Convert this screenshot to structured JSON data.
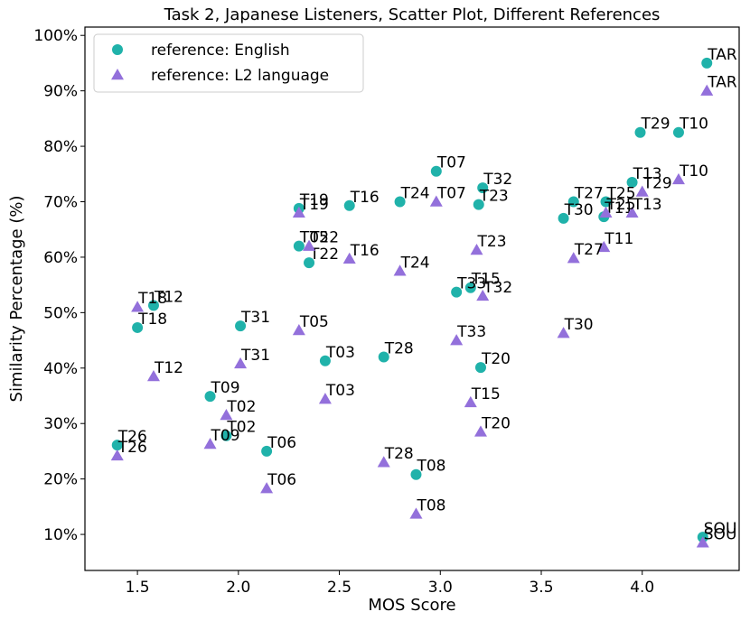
{
  "chart_data": {
    "type": "scatter",
    "title": "Task 2, Japanese Listeners, Scatter Plot, Different References",
    "xlabel": "MOS Score",
    "ylabel": "Similarity Percentage (%)",
    "xlim": [
      1.24,
      4.48
    ],
    "ylim": [
      3.5,
      101.5
    ],
    "xticks": [
      1.5,
      2.0,
      2.5,
      3.0,
      3.5,
      4.0
    ],
    "xtick_labels": [
      "1.5",
      "2.0",
      "2.5",
      "3.0",
      "3.5",
      "4.0"
    ],
    "yticks": [
      10,
      20,
      30,
      40,
      50,
      60,
      70,
      80,
      90,
      100
    ],
    "ytick_labels": [
      "10%",
      "20%",
      "30%",
      "40%",
      "50%",
      "60%",
      "70%",
      "80%",
      "90%",
      "100%"
    ],
    "grid": false,
    "legend_position": "top-left",
    "series": [
      {
        "name": "reference: English",
        "marker": "circle",
        "color": "#20b2aa",
        "points": [
          {
            "label": "TAR",
            "x": 4.32,
            "y": 95.0
          },
          {
            "label": "T29",
            "x": 3.99,
            "y": 82.5
          },
          {
            "label": "T10",
            "x": 4.18,
            "y": 82.5
          },
          {
            "label": "T07",
            "x": 2.98,
            "y": 75.5
          },
          {
            "label": "T13",
            "x": 3.95,
            "y": 73.5
          },
          {
            "label": "T32",
            "x": 3.21,
            "y": 72.5
          },
          {
            "label": "T27",
            "x": 3.66,
            "y": 70.0
          },
          {
            "label": "T25",
            "x": 3.82,
            "y": 70.0
          },
          {
            "label": "T24",
            "x": 2.8,
            "y": 70.0
          },
          {
            "label": "T16",
            "x": 2.55,
            "y": 69.3
          },
          {
            "label": "T23",
            "x": 3.19,
            "y": 69.5
          },
          {
            "label": "T19",
            "x": 2.3,
            "y": 68.8
          },
          {
            "label": "T11",
            "x": 3.81,
            "y": 67.3
          },
          {
            "label": "T30",
            "x": 3.61,
            "y": 67.0
          },
          {
            "label": "T05",
            "x": 2.3,
            "y": 62.0
          },
          {
            "label": "T22",
            "x": 2.35,
            "y": 59.0
          },
          {
            "label": "T15",
            "x": 3.15,
            "y": 54.5
          },
          {
            "label": "T33",
            "x": 3.08,
            "y": 53.7
          },
          {
            "label": "T12",
            "x": 1.58,
            "y": 51.3
          },
          {
            "label": "T31",
            "x": 2.01,
            "y": 47.6
          },
          {
            "label": "T18",
            "x": 1.5,
            "y": 47.3
          },
          {
            "label": "T28",
            "x": 2.72,
            "y": 42.0
          },
          {
            "label": "T03",
            "x": 2.43,
            "y": 41.3
          },
          {
            "label": "T20",
            "x": 3.2,
            "y": 40.1
          },
          {
            "label": "T09",
            "x": 1.86,
            "y": 34.9
          },
          {
            "label": "T02",
            "x": 1.94,
            "y": 27.8
          },
          {
            "label": "T26",
            "x": 1.4,
            "y": 26.1
          },
          {
            "label": "T06",
            "x": 2.14,
            "y": 25.0
          },
          {
            "label": "T08",
            "x": 2.88,
            "y": 20.8
          },
          {
            "label": "SOU",
            "x": 4.3,
            "y": 9.5
          }
        ]
      },
      {
        "name": "reference: L2 language",
        "marker": "triangle",
        "color": "#9370db",
        "points": [
          {
            "label": "TAR",
            "x": 4.32,
            "y": 90.0
          },
          {
            "label": "T10",
            "x": 4.18,
            "y": 74.0
          },
          {
            "label": "T29",
            "x": 4.0,
            "y": 71.8
          },
          {
            "label": "T07",
            "x": 2.98,
            "y": 70.0
          },
          {
            "label": "T13",
            "x": 3.95,
            "y": 68.0
          },
          {
            "label": "T25",
            "x": 3.82,
            "y": 68.0
          },
          {
            "label": "T19",
            "x": 2.3,
            "y": 68.0
          },
          {
            "label": "T22",
            "x": 2.35,
            "y": 62.0
          },
          {
            "label": "T11",
            "x": 3.81,
            "y": 61.8
          },
          {
            "label": "T23",
            "x": 3.18,
            "y": 61.3
          },
          {
            "label": "T27",
            "x": 3.66,
            "y": 59.8
          },
          {
            "label": "T16",
            "x": 2.55,
            "y": 59.7
          },
          {
            "label": "T24",
            "x": 2.8,
            "y": 57.5
          },
          {
            "label": "T32",
            "x": 3.21,
            "y": 53.0
          },
          {
            "label": "T18",
            "x": 1.5,
            "y": 51.0
          },
          {
            "label": "T05",
            "x": 2.3,
            "y": 46.8
          },
          {
            "label": "T30",
            "x": 3.61,
            "y": 46.3
          },
          {
            "label": "T33",
            "x": 3.08,
            "y": 45.0
          },
          {
            "label": "T31",
            "x": 2.01,
            "y": 40.8
          },
          {
            "label": "T12",
            "x": 1.58,
            "y": 38.5
          },
          {
            "label": "T03",
            "x": 2.43,
            "y": 34.4
          },
          {
            "label": "T15",
            "x": 3.15,
            "y": 33.8
          },
          {
            "label": "T02",
            "x": 1.94,
            "y": 31.5
          },
          {
            "label": "T20",
            "x": 3.2,
            "y": 28.5
          },
          {
            "label": "T09",
            "x": 1.86,
            "y": 26.3
          },
          {
            "label": "T26",
            "x": 1.4,
            "y": 24.2
          },
          {
            "label": "T28",
            "x": 2.72,
            "y": 23.0
          },
          {
            "label": "T06",
            "x": 2.14,
            "y": 18.3
          },
          {
            "label": "T08",
            "x": 2.88,
            "y": 13.7
          },
          {
            "label": "SOU",
            "x": 4.3,
            "y": 8.5
          }
        ]
      }
    ]
  }
}
